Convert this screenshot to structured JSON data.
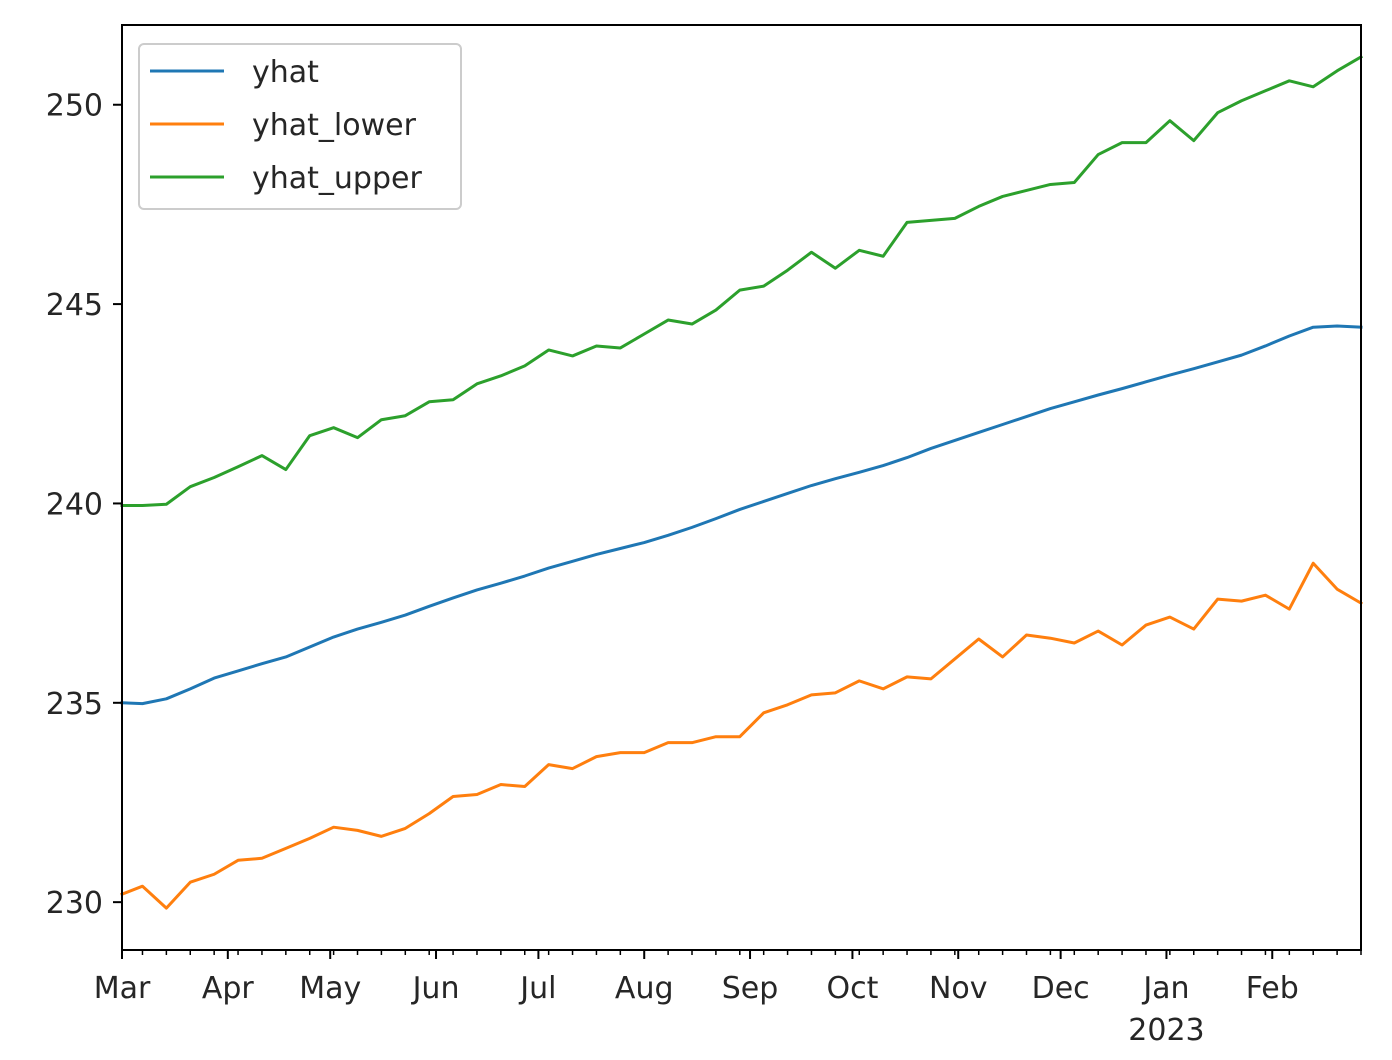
{
  "chart_data": {
    "type": "line",
    "title": "",
    "xlabel": "",
    "ylabel": "",
    "x": [
      "2022-03-01",
      "2022-03-07",
      "2022-03-14",
      "2022-03-21",
      "2022-03-28",
      "2022-04-04",
      "2022-04-11",
      "2022-04-18",
      "2022-04-25",
      "2022-05-02",
      "2022-05-09",
      "2022-05-16",
      "2022-05-23",
      "2022-05-30",
      "2022-06-06",
      "2022-06-13",
      "2022-06-20",
      "2022-06-27",
      "2022-07-04",
      "2022-07-11",
      "2022-07-18",
      "2022-07-25",
      "2022-08-01",
      "2022-08-08",
      "2022-08-15",
      "2022-08-22",
      "2022-08-29",
      "2022-09-05",
      "2022-09-12",
      "2022-09-19",
      "2022-09-26",
      "2022-10-03",
      "2022-10-10",
      "2022-10-17",
      "2022-10-24",
      "2022-10-31",
      "2022-11-07",
      "2022-11-14",
      "2022-11-21",
      "2022-11-28",
      "2022-12-05",
      "2022-12-12",
      "2022-12-19",
      "2022-12-26",
      "2023-01-02",
      "2023-01-09",
      "2023-01-16",
      "2023-01-23",
      "2023-01-30",
      "2023-02-06",
      "2023-02-13",
      "2023-02-20",
      "2023-02-27"
    ],
    "series": [
      {
        "name": "yhat",
        "color": "#1f77b4",
        "values": [
          235.0,
          234.98,
          235.1,
          235.35,
          235.62,
          235.8,
          235.98,
          236.15,
          236.4,
          236.65,
          236.85,
          237.02,
          237.2,
          237.42,
          237.63,
          237.83,
          238.0,
          238.18,
          238.38,
          238.55,
          238.72,
          238.87,
          239.02,
          239.2,
          239.4,
          239.62,
          239.85,
          240.05,
          240.25,
          240.45,
          240.62,
          240.78,
          240.95,
          241.15,
          241.38,
          241.58,
          241.78,
          241.98,
          242.18,
          242.38,
          242.55,
          242.72,
          242.88,
          243.05,
          243.22,
          243.38,
          243.55,
          243.72,
          243.95,
          244.2,
          244.42,
          244.45,
          244.42
        ]
      },
      {
        "name": "yhat_lower",
        "color": "#ff7f0e",
        "values": [
          230.2,
          230.4,
          229.85,
          230.5,
          230.7,
          231.05,
          231.1,
          231.35,
          231.6,
          231.88,
          231.8,
          231.65,
          231.85,
          232.22,
          232.65,
          232.7,
          232.95,
          232.9,
          233.45,
          233.35,
          233.65,
          233.75,
          233.75,
          234.0,
          234.0,
          234.15,
          234.15,
          234.75,
          234.95,
          235.2,
          235.25,
          235.55,
          235.35,
          235.65,
          235.6,
          236.1,
          236.6,
          236.15,
          236.7,
          236.62,
          236.5,
          236.8,
          236.45,
          236.95,
          237.15,
          236.85,
          237.6,
          237.55,
          237.7,
          237.35,
          238.5,
          237.85,
          237.5
        ]
      },
      {
        "name": "yhat_upper",
        "color": "#2ca02c",
        "values": [
          239.95,
          239.95,
          239.98,
          240.42,
          240.65,
          240.92,
          241.2,
          240.85,
          241.7,
          241.9,
          241.65,
          242.1,
          242.2,
          242.55,
          242.6,
          243.0,
          243.2,
          243.45,
          243.85,
          243.7,
          243.95,
          243.9,
          244.25,
          244.6,
          244.5,
          244.85,
          245.35,
          245.45,
          245.85,
          246.3,
          245.9,
          246.35,
          246.2,
          247.05,
          247.1,
          247.15,
          247.45,
          247.7,
          247.85,
          248.0,
          248.05,
          248.75,
          249.05,
          249.05,
          249.6,
          249.1,
          249.8,
          250.1,
          250.35,
          250.6,
          250.45,
          250.85,
          251.2
        ]
      }
    ],
    "xlim": [
      "2022-03-01",
      "2023-02-27"
    ],
    "ylim": [
      228.8,
      252.0
    ],
    "yticks": [
      230,
      235,
      240,
      245,
      250
    ],
    "ytick_labels": [
      "230",
      "235",
      "240",
      "245",
      "250"
    ],
    "xticks": [
      {
        "date": "2022-03-01",
        "label": "Mar"
      },
      {
        "date": "2022-04-01",
        "label": "Apr"
      },
      {
        "date": "2022-05-01",
        "label": "May"
      },
      {
        "date": "2022-06-01",
        "label": "Jun"
      },
      {
        "date": "2022-07-01",
        "label": "Jul"
      },
      {
        "date": "2022-08-01",
        "label": "Aug"
      },
      {
        "date": "2022-09-01",
        "label": "Sep"
      },
      {
        "date": "2022-10-01",
        "label": "Oct"
      },
      {
        "date": "2022-11-01",
        "label": "Nov"
      },
      {
        "date": "2022-12-01",
        "label": "Dec"
      },
      {
        "date": "2023-01-01",
        "label": "Jan"
      },
      {
        "date": "2023-02-01",
        "label": "Feb"
      }
    ],
    "year_label": {
      "date": "2023-01-01",
      "label": "2023"
    },
    "grid": false,
    "legend_placement": "upper-left"
  }
}
